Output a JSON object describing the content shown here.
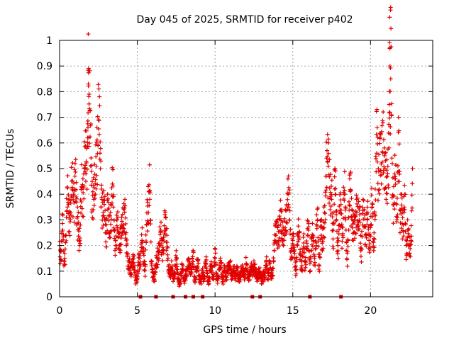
{
  "chart_data": {
    "type": "scatter",
    "title": "Day 045 of 2025, SRMTID for receiver p402",
    "xlabel": "GPS time / hours",
    "ylabel": "SRMTID / TECUs",
    "xlim": [
      0,
      24
    ],
    "ylim": [
      0,
      1
    ],
    "xticks": [
      {
        "value": 0,
        "label": "0"
      },
      {
        "value": 5,
        "label": "5"
      },
      {
        "value": 10,
        "label": "10"
      },
      {
        "value": 15,
        "label": "15"
      },
      {
        "value": 20,
        "label": "20"
      }
    ],
    "yticks": [
      {
        "value": 0,
        "label": "0"
      },
      {
        "value": 0.1,
        "label": "0.1"
      },
      {
        "value": 0.2,
        "label": "0.2"
      },
      {
        "value": 0.3,
        "label": "0.3"
      },
      {
        "value": 0.4,
        "label": "0.4"
      },
      {
        "value": 0.5,
        "label": "0.5"
      },
      {
        "value": 0.6,
        "label": "0.6"
      },
      {
        "value": 0.7,
        "label": "0.7"
      },
      {
        "value": 0.8,
        "label": "0.8"
      },
      {
        "value": 0.9,
        "label": "0.9"
      },
      {
        "value": 1,
        "label": "1"
      }
    ],
    "grid": true,
    "marker": "+",
    "color": "#e00000",
    "series": [
      {
        "name": "SRMTID",
        "points": [
          [
            0.0,
            0.2
          ],
          [
            0.1,
            0.18
          ],
          [
            0.2,
            0.26
          ],
          [
            0.3,
            0.14
          ],
          [
            0.4,
            0.24
          ],
          [
            0.5,
            0.35
          ],
          [
            0.6,
            0.38
          ],
          [
            0.7,
            0.3
          ],
          [
            0.8,
            0.42
          ],
          [
            0.9,
            0.4
          ],
          [
            1.0,
            0.52
          ],
          [
            1.1,
            0.28
          ],
          [
            1.2,
            0.33
          ],
          [
            1.3,
            0.2
          ],
          [
            1.4,
            0.37
          ],
          [
            1.5,
            0.46
          ],
          [
            1.6,
            0.5
          ],
          [
            1.7,
            0.48
          ],
          [
            1.8,
            0.62
          ],
          [
            1.85,
            0.83
          ],
          [
            1.9,
            0.79
          ],
          [
            2.0,
            0.51
          ],
          [
            2.1,
            0.45
          ],
          [
            2.2,
            0.38
          ],
          [
            2.3,
            0.4
          ],
          [
            2.4,
            0.66
          ],
          [
            2.5,
            0.69
          ],
          [
            2.6,
            0.56
          ],
          [
            2.7,
            0.42
          ],
          [
            2.8,
            0.33
          ],
          [
            2.9,
            0.3
          ],
          [
            3.0,
            0.28
          ],
          [
            3.1,
            0.34
          ],
          [
            3.2,
            0.23
          ],
          [
            3.3,
            0.36
          ],
          [
            3.4,
            0.44
          ],
          [
            3.5,
            0.26
          ],
          [
            3.6,
            0.22
          ],
          [
            3.7,
            0.3
          ],
          [
            3.8,
            0.19
          ],
          [
            3.9,
            0.27
          ],
          [
            4.0,
            0.24
          ],
          [
            4.1,
            0.28
          ],
          [
            4.2,
            0.38
          ],
          [
            4.3,
            0.2
          ],
          [
            4.4,
            0.11
          ],
          [
            4.5,
            0.15
          ],
          [
            4.6,
            0.08
          ],
          [
            4.7,
            0.13
          ],
          [
            4.8,
            0.16
          ],
          [
            4.9,
            0.05
          ],
          [
            5.0,
            0.07
          ],
          [
            5.1,
            0.17
          ],
          [
            5.2,
            0.12
          ],
          [
            5.3,
            0.22
          ],
          [
            5.4,
            0.19
          ],
          [
            5.5,
            0.08
          ],
          [
            5.6,
            0.28
          ],
          [
            5.7,
            0.43
          ],
          [
            5.8,
            0.38
          ],
          [
            5.9,
            0.14
          ],
          [
            6.0,
            0.1
          ],
          [
            6.1,
            0.06
          ],
          [
            6.2,
            0.12
          ],
          [
            6.3,
            0.19
          ],
          [
            6.4,
            0.15
          ],
          [
            6.5,
            0.26
          ],
          [
            6.6,
            0.22
          ],
          [
            6.7,
            0.17
          ],
          [
            6.8,
            0.33
          ],
          [
            6.9,
            0.24
          ],
          [
            7.0,
            0.1
          ],
          [
            7.1,
            0.08
          ],
          [
            7.2,
            0.14
          ],
          [
            7.3,
            0.06
          ],
          [
            7.4,
            0.09
          ],
          [
            7.5,
            0.18
          ],
          [
            7.6,
            0.07
          ],
          [
            7.7,
            0.05
          ],
          [
            7.8,
            0.09
          ],
          [
            7.9,
            0.11
          ],
          [
            8.0,
            0.06
          ],
          [
            8.1,
            0.1
          ],
          [
            8.2,
            0.08
          ],
          [
            8.3,
            0.15
          ],
          [
            8.4,
            0.12
          ],
          [
            8.5,
            0.09
          ],
          [
            8.6,
            0.18
          ],
          [
            8.7,
            0.06
          ],
          [
            8.8,
            0.1
          ],
          [
            8.9,
            0.14
          ],
          [
            9.0,
            0.08
          ],
          [
            9.1,
            0.05
          ],
          [
            9.2,
            0.11
          ],
          [
            9.3,
            0.07
          ],
          [
            9.4,
            0.13
          ],
          [
            9.5,
            0.09
          ],
          [
            9.6,
            0.06
          ],
          [
            9.7,
            0.1
          ],
          [
            9.8,
            0.12
          ],
          [
            9.9,
            0.08
          ],
          [
            10.0,
            0.15
          ],
          [
            10.1,
            0.09
          ],
          [
            10.2,
            0.07
          ],
          [
            10.3,
            0.11
          ],
          [
            10.4,
            0.13
          ],
          [
            10.5,
            0.06
          ],
          [
            10.6,
            0.1
          ],
          [
            10.7,
            0.08
          ],
          [
            10.8,
            0.12
          ],
          [
            10.9,
            0.09
          ],
          [
            11.0,
            0.14
          ],
          [
            11.1,
            0.07
          ],
          [
            11.2,
            0.1
          ],
          [
            11.3,
            0.08
          ],
          [
            11.4,
            0.12
          ],
          [
            11.5,
            0.06
          ],
          [
            11.6,
            0.09
          ],
          [
            11.7,
            0.11
          ],
          [
            11.8,
            0.08
          ],
          [
            11.9,
            0.1
          ],
          [
            12.0,
            0.13
          ],
          [
            12.1,
            0.07
          ],
          [
            12.2,
            0.09
          ],
          [
            12.3,
            0.12
          ],
          [
            12.4,
            0.08
          ],
          [
            12.5,
            0.14
          ],
          [
            12.6,
            0.1
          ],
          [
            12.7,
            0.06
          ],
          [
            12.8,
            0.11
          ],
          [
            12.9,
            0.09
          ],
          [
            13.0,
            0.05
          ],
          [
            13.1,
            0.1
          ],
          [
            13.2,
            0.08
          ],
          [
            13.3,
            0.12
          ],
          [
            13.4,
            0.09
          ],
          [
            13.5,
            0.13
          ],
          [
            13.6,
            0.07
          ],
          [
            13.7,
            0.11
          ],
          [
            13.8,
            0.18
          ],
          [
            13.9,
            0.24
          ],
          [
            14.0,
            0.3
          ],
          [
            14.1,
            0.22
          ],
          [
            14.2,
            0.28
          ],
          [
            14.3,
            0.34
          ],
          [
            14.4,
            0.2
          ],
          [
            14.5,
            0.26
          ],
          [
            14.6,
            0.36
          ],
          [
            14.7,
            0.4
          ],
          [
            14.8,
            0.3
          ],
          [
            14.9,
            0.18
          ],
          [
            15.0,
            0.22
          ],
          [
            15.1,
            0.15
          ],
          [
            15.2,
            0.12
          ],
          [
            15.3,
            0.2
          ],
          [
            15.4,
            0.25
          ],
          [
            15.5,
            0.17
          ],
          [
            15.6,
            0.1
          ],
          [
            15.7,
            0.21
          ],
          [
            15.8,
            0.14
          ],
          [
            15.9,
            0.19
          ],
          [
            16.0,
            0.26
          ],
          [
            16.1,
            0.13
          ],
          [
            16.2,
            0.18
          ],
          [
            16.3,
            0.24
          ],
          [
            16.4,
            0.15
          ],
          [
            16.5,
            0.21
          ],
          [
            16.6,
            0.3
          ],
          [
            16.7,
            0.12
          ],
          [
            16.8,
            0.27
          ],
          [
            16.9,
            0.18
          ],
          [
            17.0,
            0.35
          ],
          [
            17.1,
            0.3
          ],
          [
            17.2,
            0.57
          ],
          [
            17.3,
            0.6
          ],
          [
            17.4,
            0.34
          ],
          [
            17.5,
            0.38
          ],
          [
            17.6,
            0.26
          ],
          [
            17.7,
            0.42
          ],
          [
            17.8,
            0.32
          ],
          [
            17.9,
            0.2
          ],
          [
            18.0,
            0.28
          ],
          [
            18.1,
            0.36
          ],
          [
            18.2,
            0.24
          ],
          [
            18.3,
            0.4
          ],
          [
            18.4,
            0.3
          ],
          [
            18.5,
            0.17
          ],
          [
            18.6,
            0.26
          ],
          [
            18.7,
            0.48
          ],
          [
            18.8,
            0.34
          ],
          [
            18.9,
            0.22
          ],
          [
            19.0,
            0.3
          ],
          [
            19.1,
            0.38
          ],
          [
            19.2,
            0.26
          ],
          [
            19.3,
            0.32
          ],
          [
            19.4,
            0.19
          ],
          [
            19.5,
            0.28
          ],
          [
            19.6,
            0.34
          ],
          [
            19.7,
            0.24
          ],
          [
            19.8,
            0.3
          ],
          [
            19.9,
            0.22
          ],
          [
            20.0,
            0.27
          ],
          [
            20.1,
            0.35
          ],
          [
            20.2,
            0.18
          ],
          [
            20.3,
            0.42
          ],
          [
            20.4,
            0.56
          ],
          [
            20.5,
            0.5
          ],
          [
            20.6,
            0.62
          ],
          [
            20.7,
            0.44
          ],
          [
            20.8,
            0.68
          ],
          [
            20.9,
            0.55
          ],
          [
            21.0,
            0.38
          ],
          [
            21.1,
            0.48
          ],
          [
            21.2,
            0.75
          ],
          [
            21.25,
            0.9
          ],
          [
            21.3,
            0.85
          ],
          [
            21.4,
            0.52
          ],
          [
            21.5,
            0.36
          ],
          [
            21.6,
            0.46
          ],
          [
            21.7,
            0.3
          ],
          [
            21.8,
            0.7
          ],
          [
            21.9,
            0.25
          ],
          [
            22.0,
            0.4
          ],
          [
            22.1,
            0.28
          ],
          [
            22.2,
            0.34
          ],
          [
            22.3,
            0.2
          ],
          [
            22.4,
            0.26
          ],
          [
            22.5,
            0.16
          ],
          [
            22.6,
            0.22
          ],
          [
            22.7,
            0.5
          ]
        ]
      }
    ],
    "zero_markers": [
      5.2,
      6.2,
      7.3,
      8.1,
      8.6,
      9.2,
      12.4,
      12.9,
      16.1,
      18.1
    ]
  }
}
